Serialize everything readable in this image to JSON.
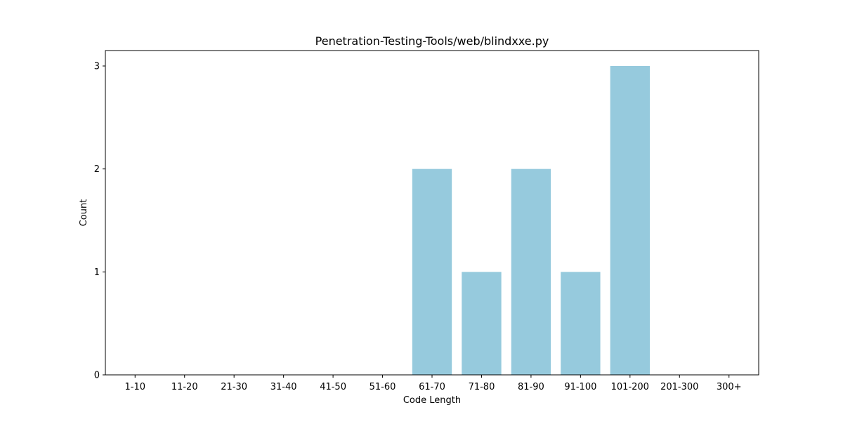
{
  "chart_data": {
    "type": "bar",
    "title": "Penetration-Testing-Tools/web/blindxxe.py",
    "xlabel": "Code Length",
    "ylabel": "Count",
    "categories": [
      "1-10",
      "11-20",
      "21-30",
      "31-40",
      "41-50",
      "51-60",
      "61-70",
      "71-80",
      "81-90",
      "91-100",
      "101-200",
      "201-300",
      "300+"
    ],
    "values": [
      0,
      0,
      0,
      0,
      0,
      0,
      2,
      1,
      2,
      1,
      3,
      0,
      0
    ],
    "ylim": [
      0,
      3.15
    ],
    "yticks": [
      0,
      1,
      2,
      3
    ],
    "bar_color": "#96cadd",
    "grid": false,
    "legend": "none"
  }
}
